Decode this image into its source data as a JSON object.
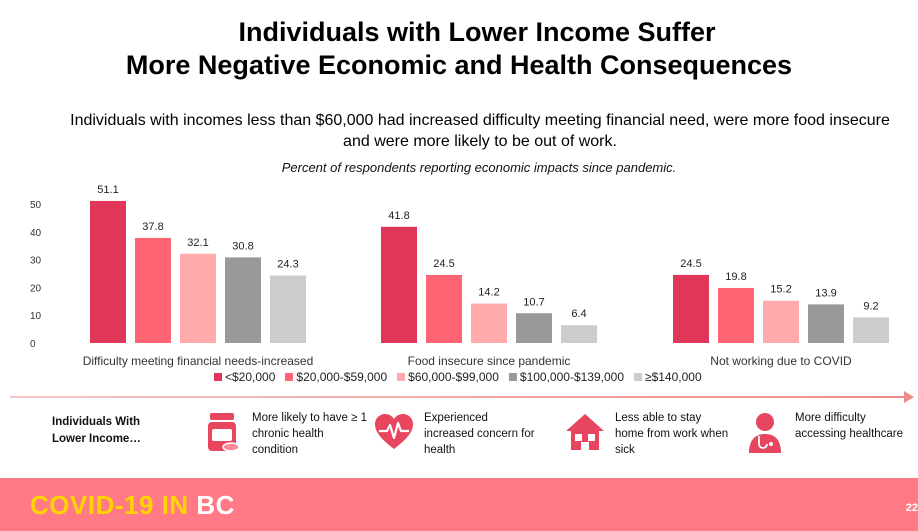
{
  "title_line1": "Individuals with Lower Income Suffer",
  "title_line2": "More Negative Economic and Health Consequences",
  "subtitle_line1": "Individuals with incomes less than $60,000 had increased difficulty meeting financial need, were more food insecure",
  "subtitle_line2": "and were more likely to be out of work.",
  "caption": "Percent of respondents reporting economic impacts since pandemic.",
  "chart_data": {
    "type": "bar",
    "categories": [
      "Difficulty meeting financial needs-increased",
      "Food insecure since pandemic",
      "Not working due to COVID"
    ],
    "series": [
      {
        "name": "<$20,000",
        "color": "#e0365a",
        "values": [
          51.1,
          41.8,
          24.5
        ]
      },
      {
        "name": "$20,000-$59,000",
        "color": "#ff6473",
        "values": [
          37.8,
          24.5,
          19.8
        ]
      },
      {
        "name": "$60,000-$99,000",
        "color": "#ffabab",
        "values": [
          32.1,
          14.2,
          15.2
        ]
      },
      {
        "name": "$100,000-$139,000",
        "color": "#999999",
        "values": [
          30.8,
          10.7,
          13.9
        ]
      },
      {
        "name": "≥$140,000",
        "color": "#cccccc",
        "values": [
          24.3,
          6.4,
          9.2
        ]
      }
    ],
    "yticks": [
      "0",
      "10",
      "20",
      "30",
      "40",
      "50"
    ],
    "ylim": [
      0,
      55
    ],
    "legend_position": "bottom",
    "grid": false
  },
  "impacts": {
    "label": "Individuals With Lower Income…",
    "items": [
      {
        "icon": "pill-bottle-icon",
        "text": "More likely to have ≥ 1 chronic health condition"
      },
      {
        "icon": "heart-pulse-icon",
        "text": "Experienced increased concern for health"
      },
      {
        "icon": "house-icon",
        "text": "Less able to stay home from work when sick"
      },
      {
        "icon": "doctor-icon",
        "text": "More difficulty accessing healthcare"
      }
    ]
  },
  "footer": {
    "logo_part1": "COVID-19 IN",
    "logo_part2": "BC",
    "page": "22",
    "background": "#ff7a85"
  }
}
